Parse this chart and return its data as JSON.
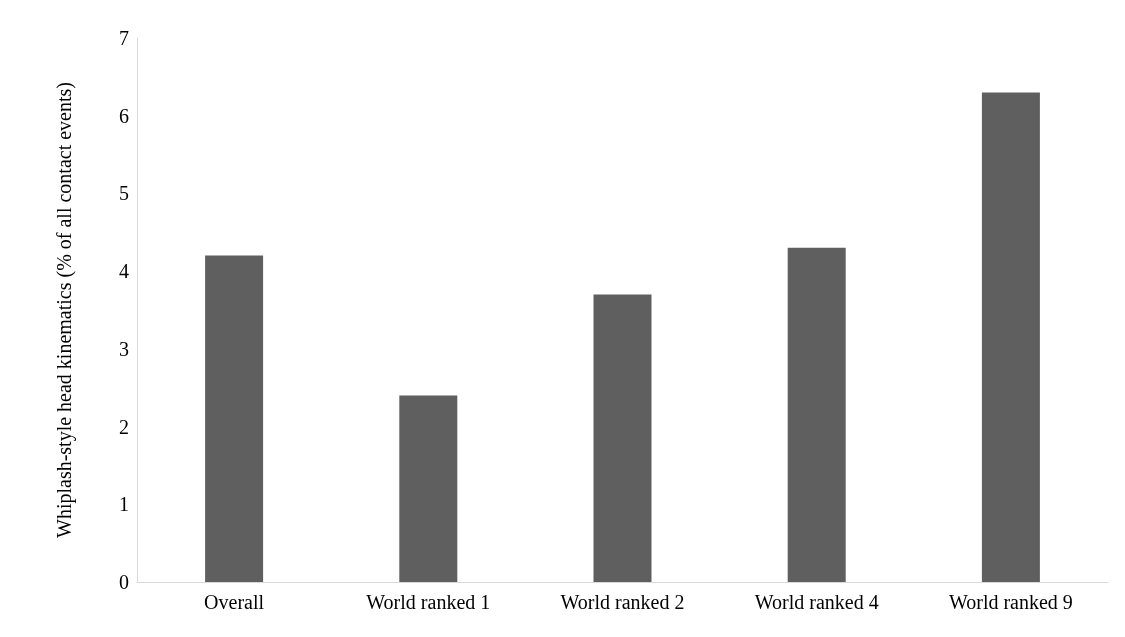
{
  "chart_data": {
    "type": "bar",
    "ylabel": "Whiplash-style head kinematics (% of all contact events)",
    "categories": [
      "Overall",
      "World ranked 1",
      "World ranked 2",
      "World ranked 4",
      "World ranked 9"
    ],
    "values": [
      4.2,
      2.4,
      3.7,
      4.3,
      6.3
    ],
    "color": "#5f5f5f",
    "ylim": [
      0,
      7
    ],
    "yticks": [
      0,
      1,
      2,
      3,
      4,
      5,
      6,
      7
    ],
    "grid": false
  }
}
